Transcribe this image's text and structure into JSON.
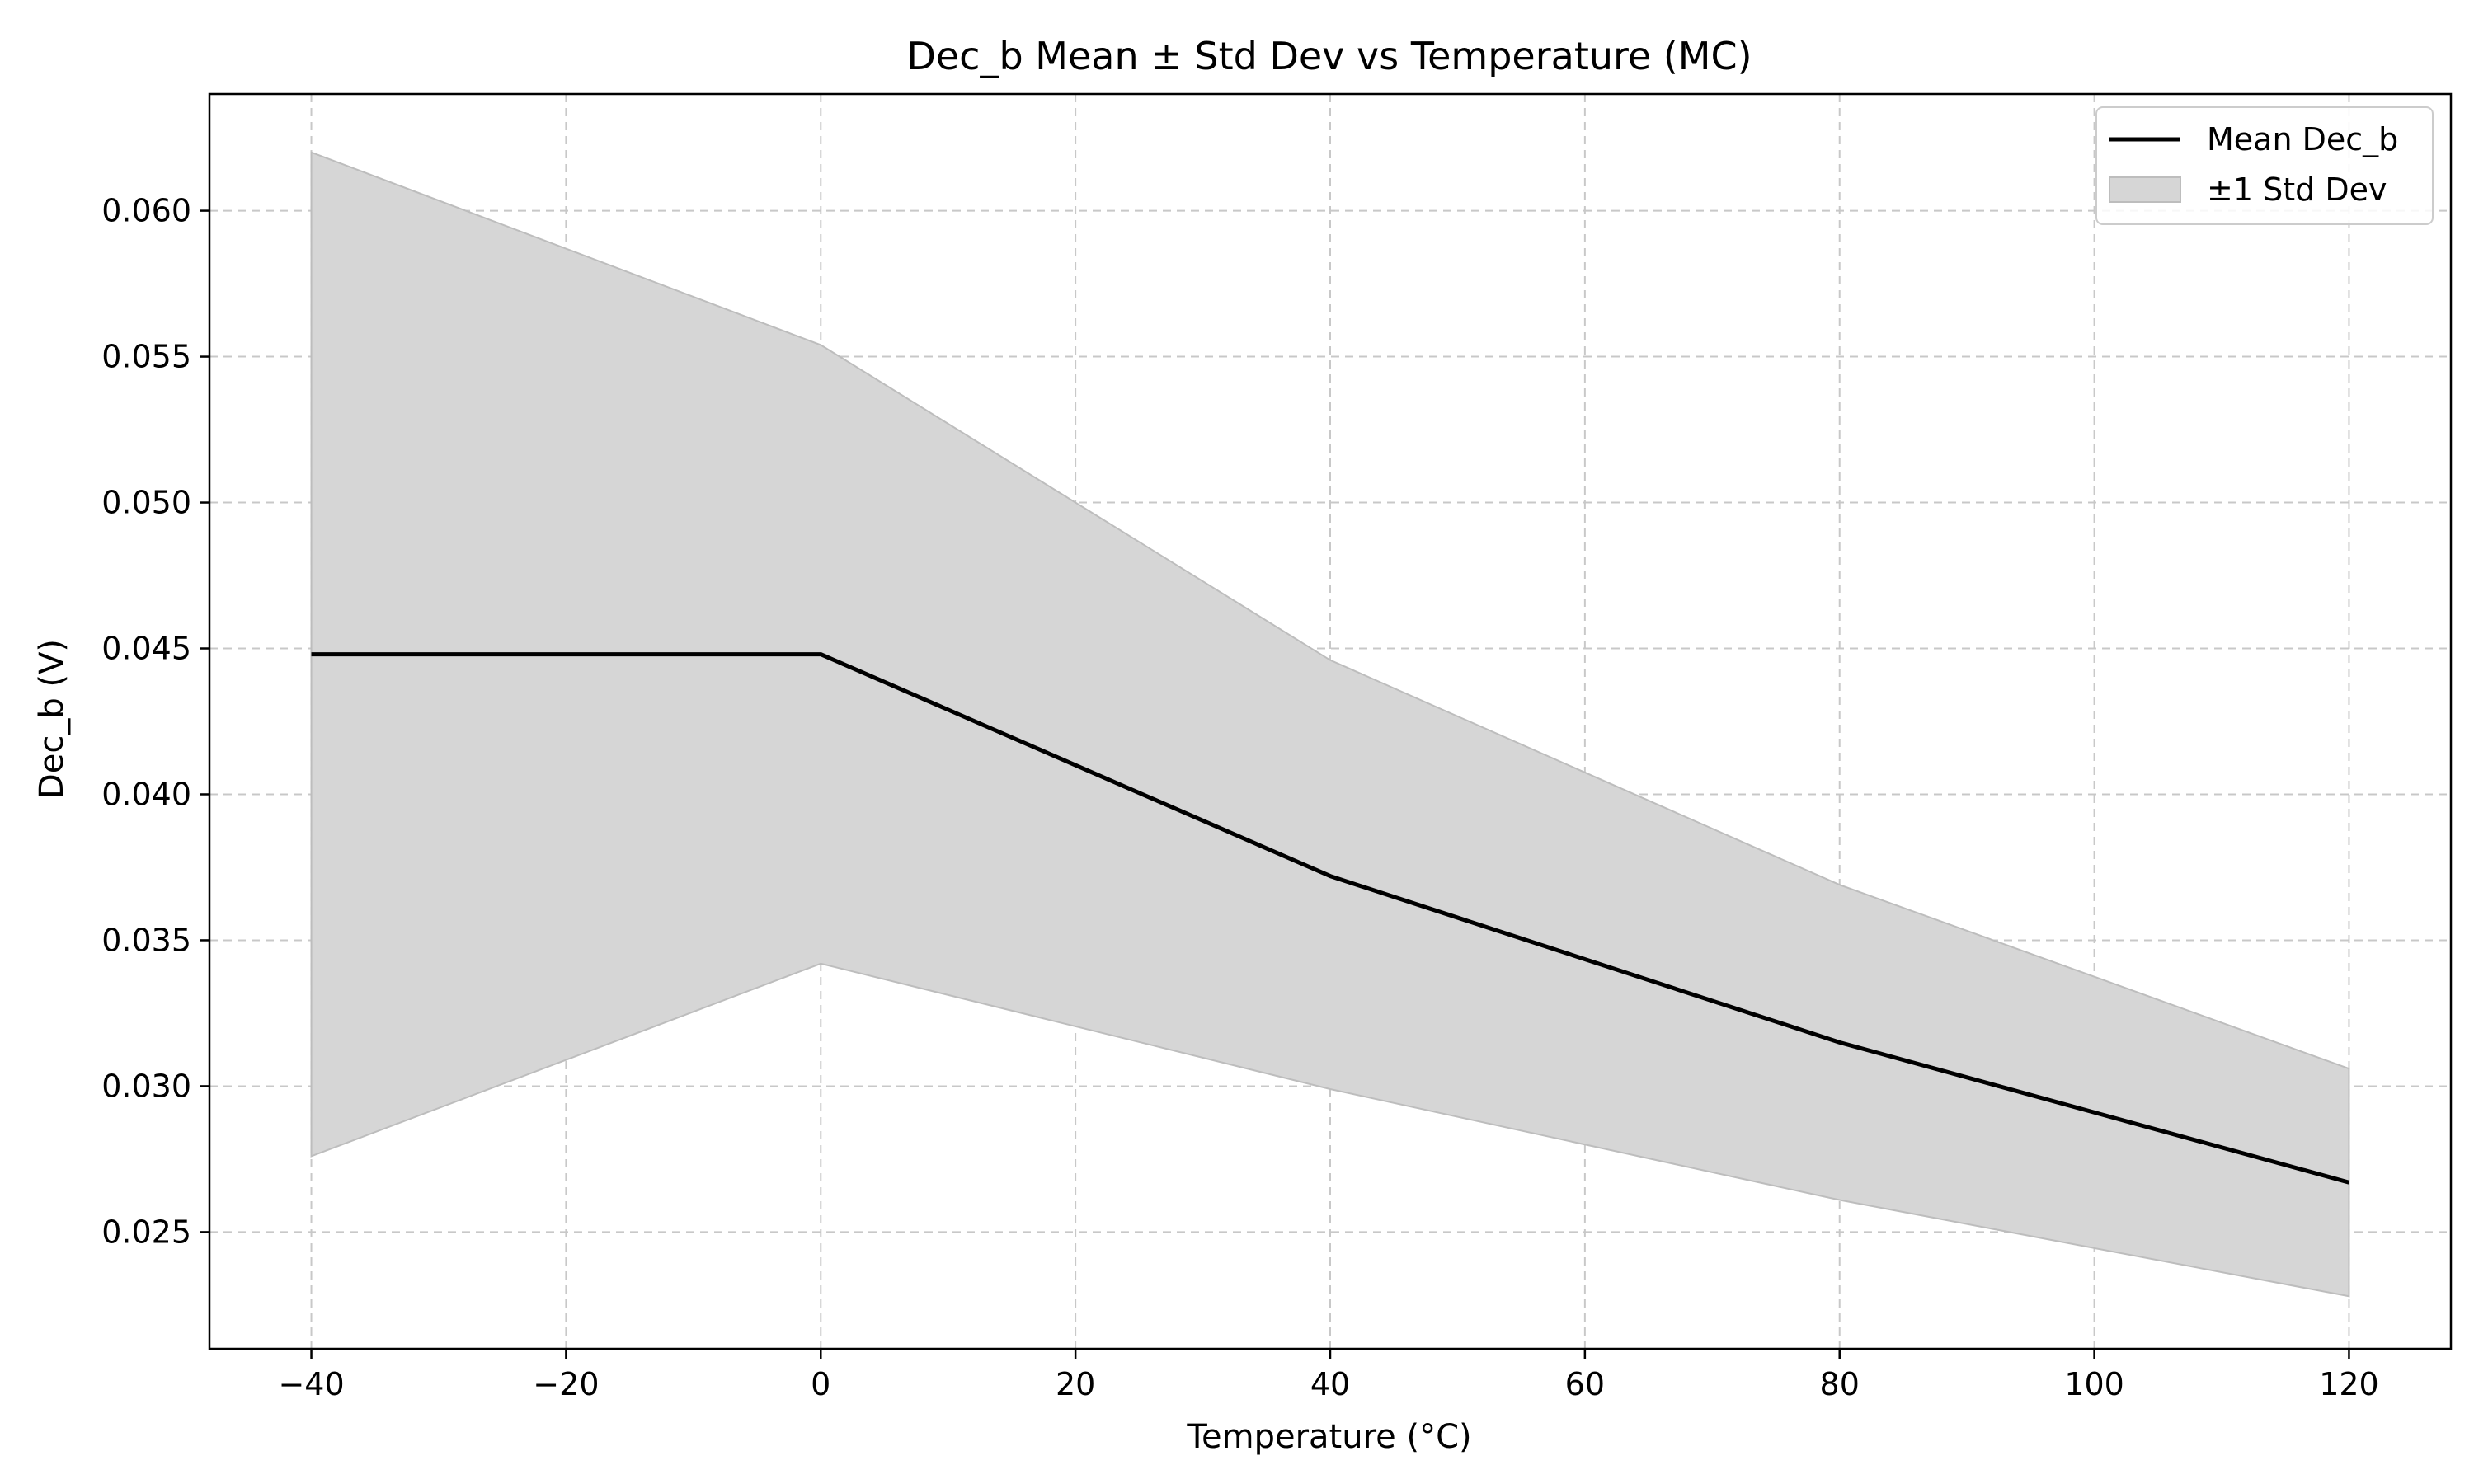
{
  "chart_data": {
    "type": "line",
    "title": "Dec_b Mean ± Std Dev vs Temperature (MC)",
    "xlabel": "Temperature (°C)",
    "ylabel": "Dec_b (V)",
    "x": [
      -40,
      0,
      40,
      80,
      120
    ],
    "series": [
      {
        "name": "Mean Dec_b",
        "kind": "line",
        "color": "#000000",
        "values": [
          0.0448,
          0.0448,
          0.0372,
          0.0315,
          0.0267
        ]
      },
      {
        "name": "±1 Std Dev",
        "kind": "band",
        "color": "#d6d6d6",
        "upper": [
          0.062,
          0.0554,
          0.0446,
          0.0369,
          0.0306
        ],
        "lower": [
          0.0276,
          0.0342,
          0.0299,
          0.0261,
          0.0228
        ]
      }
    ],
    "xlim": [
      -48,
      128
    ],
    "ylim": [
      0.021,
      0.064
    ],
    "xticks": [
      -40,
      -20,
      0,
      20,
      40,
      60,
      80,
      100,
      120
    ],
    "xtick_labels": [
      "−40",
      "−20",
      "0",
      "20",
      "40",
      "60",
      "80",
      "100",
      "120"
    ],
    "yticks": [
      0.025,
      0.03,
      0.035,
      0.04,
      0.045,
      0.05,
      0.055,
      0.06
    ],
    "ytick_labels": [
      "0.025",
      "0.030",
      "0.035",
      "0.040",
      "0.045",
      "0.050",
      "0.055",
      "0.060"
    ],
    "grid": true,
    "grid_style": "dashed",
    "legend_position": "top-right"
  }
}
